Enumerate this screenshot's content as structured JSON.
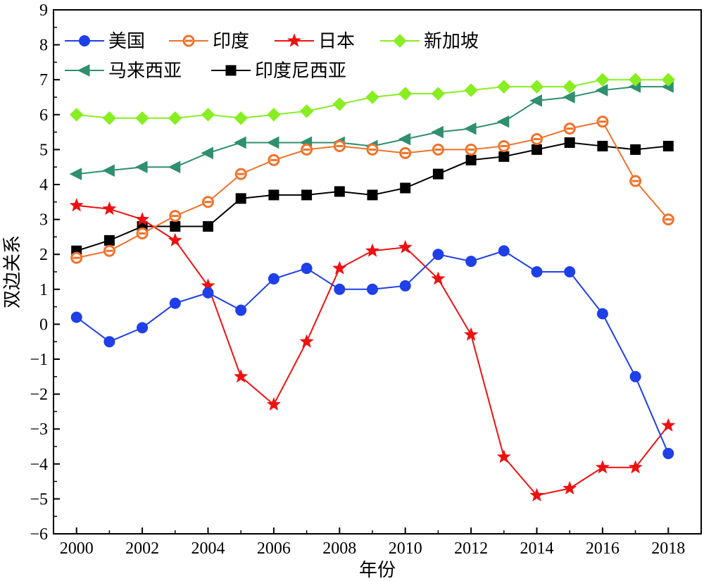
{
  "chart_data": {
    "type": "line",
    "title": "",
    "xlabel": "年份",
    "ylabel": "双边关系",
    "xlim": [
      1999.3,
      2019.0
    ],
    "ylim": [
      -6,
      9
    ],
    "grid": false,
    "legend_position": "top-left",
    "x": [
      2000,
      2001,
      2002,
      2003,
      2004,
      2005,
      2006,
      2007,
      2008,
      2009,
      2010,
      2011,
      2012,
      2013,
      2014,
      2015,
      2016,
      2017,
      2018
    ],
    "x_ticks": [
      2000,
      2002,
      2004,
      2006,
      2008,
      2010,
      2012,
      2014,
      2016,
      2018
    ],
    "x_tick_labels": [
      "2000",
      "2002",
      "2004",
      "2006",
      "2008",
      "2010",
      "2012",
      "2014",
      "2016",
      "2018"
    ],
    "y_ticks": [
      -6,
      -5,
      -4,
      -3,
      -2,
      -1,
      0,
      1,
      2,
      3,
      4,
      5,
      6,
      7,
      8,
      9
    ],
    "y_tick_labels": [
      "−6",
      "−5",
      "−4",
      "−3",
      "−2",
      "−1",
      "0",
      "1",
      "2",
      "3",
      "4",
      "5",
      "6",
      "7",
      "8",
      "9"
    ],
    "series": [
      {
        "name": "美国",
        "color": "#1f3fe8",
        "marker": "circle",
        "values": [
          0.2,
          -0.5,
          -0.1,
          0.6,
          0.9,
          0.4,
          1.3,
          1.6,
          1.0,
          1.0,
          1.1,
          2.0,
          1.8,
          2.1,
          1.5,
          1.5,
          0.3,
          -1.5,
          -3.7
        ]
      },
      {
        "name": "印度",
        "color": "#f0722a",
        "marker": "circle-open",
        "values": [
          1.9,
          2.1,
          2.6,
          3.1,
          3.5,
          4.3,
          4.7,
          5.0,
          5.1,
          5.0,
          4.9,
          5.0,
          5.0,
          5.1,
          5.3,
          5.6,
          5.8,
          4.1,
          3.0
        ]
      },
      {
        "name": "日本",
        "color": "#ee1111",
        "marker": "star",
        "values": [
          3.4,
          3.3,
          3.0,
          2.4,
          1.1,
          -1.5,
          -2.3,
          -0.5,
          1.6,
          2.1,
          2.2,
          1.3,
          -0.3,
          -3.8,
          -4.9,
          -4.7,
          -4.1,
          -4.1,
          -2.9
        ]
      },
      {
        "name": "新加坡",
        "color": "#88ee22",
        "marker": "diamond",
        "values": [
          6.0,
          5.9,
          5.9,
          5.9,
          6.0,
          5.9,
          6.0,
          6.1,
          6.3,
          6.5,
          6.6,
          6.6,
          6.7,
          6.8,
          6.8,
          6.8,
          7.0,
          7.0,
          7.0
        ]
      },
      {
        "name": "马来西亚",
        "color": "#2f8f6f",
        "marker": "triangle-left",
        "values": [
          4.3,
          4.4,
          4.5,
          4.5,
          4.9,
          5.2,
          5.2,
          5.2,
          5.2,
          5.1,
          5.3,
          5.5,
          5.6,
          5.8,
          6.4,
          6.5,
          6.7,
          6.8,
          6.8
        ]
      },
      {
        "name": "印度尼西亚",
        "color": "#000000",
        "marker": "square",
        "values": [
          2.1,
          2.4,
          2.8,
          2.8,
          2.8,
          3.6,
          3.7,
          3.7,
          3.8,
          3.7,
          3.9,
          4.3,
          4.7,
          4.8,
          5.0,
          5.2,
          5.1,
          5.0,
          5.1
        ]
      }
    ]
  }
}
